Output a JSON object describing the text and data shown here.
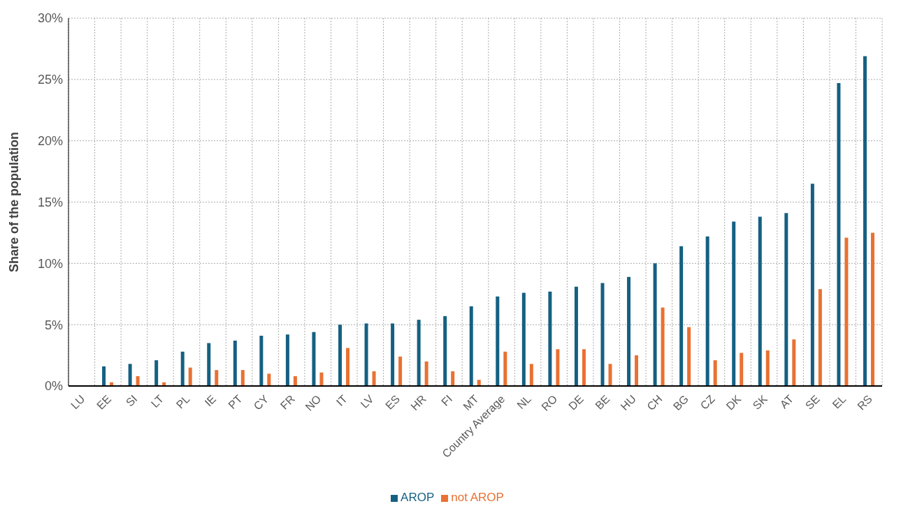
{
  "chart_data": {
    "type": "bar",
    "ylabel": "Share of the population",
    "categories": [
      "LU",
      "EE",
      "SI",
      "LT",
      "PL",
      "IE",
      "PT",
      "CY",
      "FR",
      "NO",
      "IT",
      "LV",
      "ES",
      "HR",
      "FI",
      "MT",
      "Country Average",
      "NL",
      "RO",
      "DE",
      "BE",
      "HU",
      "CH",
      "BG",
      "CZ",
      "DK",
      "SK",
      "AT",
      "SE",
      "EL",
      "RS"
    ],
    "series": [
      {
        "name": "AROP",
        "color": "#156082",
        "values": [
          null,
          1.6,
          1.8,
          2.1,
          2.8,
          3.5,
          3.7,
          4.1,
          4.2,
          4.4,
          5.0,
          5.1,
          5.1,
          5.4,
          5.7,
          6.5,
          7.3,
          7.6,
          7.7,
          8.1,
          8.4,
          8.9,
          10.0,
          11.4,
          12.2,
          13.4,
          13.8,
          14.1,
          16.5,
          24.7,
          26.9
        ]
      },
      {
        "name": "not AROP",
        "color": "#e97132",
        "values": [
          null,
          0.3,
          0.8,
          0.3,
          1.5,
          1.3,
          1.3,
          1.0,
          0.8,
          1.1,
          3.1,
          1.2,
          2.4,
          2.0,
          1.2,
          0.5,
          2.8,
          1.8,
          3.0,
          3.0,
          1.8,
          2.5,
          6.4,
          4.8,
          2.1,
          2.7,
          2.9,
          3.8,
          7.9,
          12.1,
          12.5
        ]
      }
    ],
    "ylim": [
      0,
      30
    ],
    "yticks": [
      {
        "value": 0,
        "label": "0%"
      },
      {
        "value": 5,
        "label": "5%"
      },
      {
        "value": 10,
        "label": "10%"
      },
      {
        "value": 15,
        "label": "15%"
      },
      {
        "value": 20,
        "label": "20%"
      },
      {
        "value": 25,
        "label": "25%"
      },
      {
        "value": 30,
        "label": "30%"
      }
    ],
    "grid": true,
    "legend": "bottom"
  }
}
